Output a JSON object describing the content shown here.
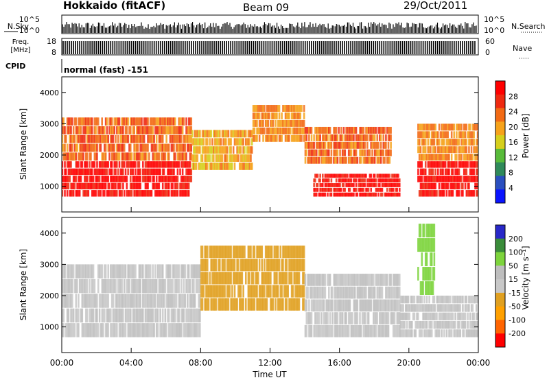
{
  "header": {
    "station": "Hokkaido (fitACF)",
    "beam": "Beam 09",
    "date": "29/Oct/2011"
  },
  "top_panels": {
    "nsky": {
      "label": "N.Sky",
      "ticks": [
        "10^5",
        "10^0"
      ]
    },
    "nsearch": {
      "label": "N.Search",
      "ticks": [
        "10^5",
        "10^0"
      ]
    },
    "freq": {
      "label_line1": "Freq.",
      "label_line2": "[MHz]",
      "ticks": [
        "18",
        "8"
      ]
    },
    "nave": {
      "label": "Nave",
      "ticks": [
        "60",
        "0"
      ]
    },
    "cpid": {
      "label": "CPID",
      "value": "normal (fast) -151"
    }
  },
  "colors": {
    "power": [
      "#0a14ff",
      "#2a4fbf",
      "#2f8a5a",
      "#58bb3a",
      "#d6cf1c",
      "#f6a21a",
      "#f26a14",
      "#ef2a10",
      "#ff0000"
    ],
    "velocity": [
      "#ff0000",
      "#ff6400",
      "#ffa000",
      "#e0a020",
      "#c8c8c8",
      "#bebebe",
      "#7dd43c",
      "#3a8c3a",
      "#2828c8"
    ]
  },
  "chart_data": [
    {
      "type": "heatmap",
      "title": "",
      "xlabel": "Time UT",
      "ylabel": "Slant Range [km]",
      "xticks": [
        "00:00",
        "04:00",
        "08:00",
        "12:00",
        "16:00",
        "20:00",
        "00:00"
      ],
      "xlim": [
        0,
        24
      ],
      "ylim": [
        180,
        4500
      ],
      "yticks": [
        1000,
        2000,
        3000,
        4000
      ],
      "colorbar": {
        "label": "Power [dB]",
        "ticks": [
          4,
          8,
          12,
          16,
          20,
          24,
          28
        ],
        "range": [
          0,
          30
        ]
      },
      "regions": [
        {
          "t": [
            0,
            7.5
          ],
          "range": [
            650,
            1800
          ],
          "value": 28
        },
        {
          "t": [
            0,
            7.5
          ],
          "range": [
            1800,
            3200
          ],
          "value": 22
        },
        {
          "t": [
            7.5,
            11
          ],
          "range": [
            1500,
            2800
          ],
          "value": 18
        },
        {
          "t": [
            11,
            14
          ],
          "range": [
            2400,
            3600
          ],
          "value": 20
        },
        {
          "t": [
            14.5,
            19.5
          ],
          "range": [
            650,
            1400
          ],
          "value": 28
        },
        {
          "t": [
            14,
            19
          ],
          "range": [
            1700,
            2900
          ],
          "value": 22
        },
        {
          "t": [
            20.5,
            24
          ],
          "range": [
            650,
            1800
          ],
          "value": 28
        },
        {
          "t": [
            20.5,
            24
          ],
          "range": [
            1800,
            3000
          ],
          "value": 20
        }
      ]
    },
    {
      "type": "heatmap",
      "title": "",
      "xlabel": "Time UT",
      "ylabel": "Slant Range [km]",
      "xticks": [
        "00:00",
        "04:00",
        "08:00",
        "12:00",
        "16:00",
        "20:00",
        "00:00"
      ],
      "xlim": [
        0,
        24
      ],
      "ylim": [
        180,
        4500
      ],
      "yticks": [
        1000,
        2000,
        3000,
        4000
      ],
      "colorbar": {
        "label": "Velocity [m s⁻¹]",
        "ticks": [
          200,
          100,
          50,
          15,
          -15,
          -50,
          -100,
          -200
        ]
      },
      "regions": [
        {
          "t": [
            0,
            8
          ],
          "range": [
            650,
            3000
          ],
          "value": 0
        },
        {
          "t": [
            8,
            14
          ],
          "range": [
            1500,
            3600
          ],
          "value": -20
        },
        {
          "t": [
            14,
            19.5
          ],
          "range": [
            650,
            2700
          ],
          "value": 0
        },
        {
          "t": [
            19.5,
            24
          ],
          "range": [
            650,
            2000
          ],
          "value": 0
        },
        {
          "t": [
            20.5,
            21.5
          ],
          "range": [
            2000,
            4300
          ],
          "value": 40
        }
      ]
    }
  ]
}
